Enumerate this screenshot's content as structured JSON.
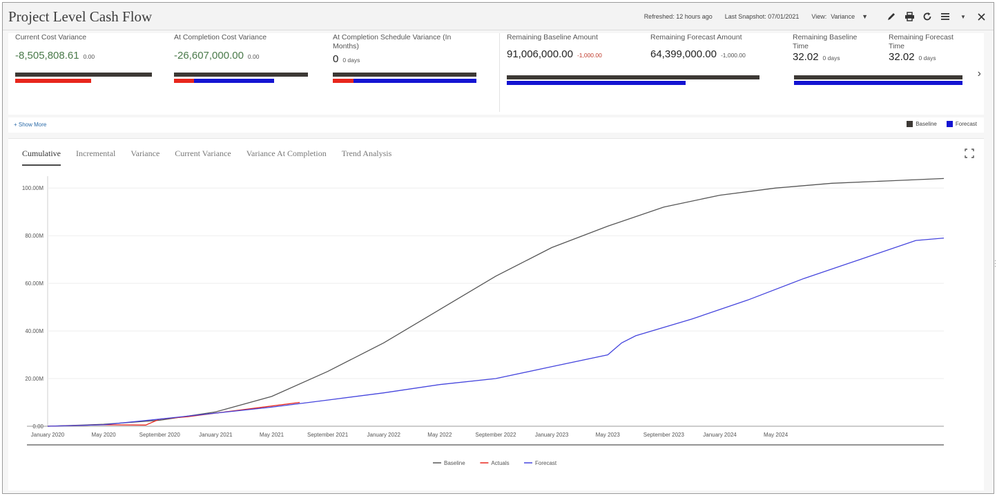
{
  "header": {
    "title": "Project Level Cash Flow",
    "refreshed": "Refreshed: 12 hours ago",
    "snapshot": "Last Snapshot: 07/01/2021",
    "view_label": "View:",
    "view_value": "Variance",
    "icons": [
      "pencil-icon",
      "print-icon",
      "refresh-icon",
      "menu-icon",
      "chevron-down-icon",
      "close-icon"
    ]
  },
  "metrics": [
    {
      "label": "Current Cost Variance",
      "value": "-8,505,808.61",
      "sub": "0.00",
      "baseline_fraction": 1.0,
      "red_fraction": 0.55,
      "blue_fraction": 0.0
    },
    {
      "label": "At Completion Cost Variance",
      "value": "-26,607,000.00",
      "sub": "0.00",
      "baseline_fraction": 1.0,
      "red_fraction": 0.15,
      "blue_fraction": 0.6
    },
    {
      "label": "At Completion Schedule Variance (In Months)",
      "value": "0",
      "sub": "0 days",
      "baseline_fraction": 1.0,
      "red_fraction": 0.15,
      "blue_fraction": 0.85
    },
    {
      "label": "Remaining Baseline Amount",
      "value": "91,006,000.00",
      "sub": "-1,000.00"
    },
    {
      "label": "Remaining Forecast Amount",
      "value": "64,399,000.00",
      "sub": "-1,000.00"
    },
    {
      "label": "Remaining Baseline Time",
      "value": "32.02",
      "sub": "0 days"
    },
    {
      "label": "Remaining Forecast Time",
      "value": "32.02",
      "sub": "0 days"
    }
  ],
  "show_more": "+ Show More",
  "legend_top": {
    "baseline": "Baseline",
    "forecast": "Forecast"
  },
  "colors": {
    "baseline": "#3d3935",
    "actuals": "#e8261c",
    "forecast": "#1414d2",
    "baseline_line": "#555555",
    "forecast_line": "#4444dd"
  },
  "tabs": [
    "Cumulative",
    "Incremental",
    "Variance",
    "Current Variance",
    "Variance At Completion",
    "Trend Analysis"
  ],
  "active_tab": "Cumulative",
  "chart_data": {
    "type": "line",
    "title": "",
    "xlabel": "",
    "ylabel": "",
    "x_ticks": [
      "January 2020",
      "May 2020",
      "September 2020",
      "January 2021",
      "May 2021",
      "September 2021",
      "January 2022",
      "May 2022",
      "September 2022",
      "January 2023",
      "May 2023",
      "September 2023",
      "January 2024",
      "May 2024"
    ],
    "y_ticks": [
      "0.00",
      "20.00M",
      "40.00M",
      "60.00M",
      "80.00M",
      "100.00M"
    ],
    "ylim": [
      0,
      100
    ],
    "x_unit": "month index from January 2020",
    "grid": true,
    "legend": "bottom",
    "series": [
      {
        "name": "Baseline",
        "points": [
          [
            0,
            0
          ],
          [
            4,
            0.8
          ],
          [
            8,
            2.5
          ],
          [
            12,
            6
          ],
          [
            16,
            12.5
          ],
          [
            20,
            23
          ],
          [
            24,
            35
          ],
          [
            28,
            49
          ],
          [
            32,
            63
          ],
          [
            36,
            75
          ],
          [
            40,
            84
          ],
          [
            44,
            92
          ],
          [
            48,
            97
          ],
          [
            52,
            100
          ],
          [
            56,
            102
          ],
          [
            60,
            103
          ],
          [
            64,
            104
          ]
        ]
      },
      {
        "name": "Actuals",
        "points": [
          [
            0,
            0
          ],
          [
            4,
            0.6
          ],
          [
            7,
            0.5
          ],
          [
            8,
            3
          ],
          [
            10,
            4
          ],
          [
            14,
            7
          ],
          [
            18,
            10
          ]
        ]
      },
      {
        "name": "Forecast",
        "points": [
          [
            0,
            0
          ],
          [
            4,
            0.6
          ],
          [
            8,
            3
          ],
          [
            12,
            5.5
          ],
          [
            16,
            8
          ],
          [
            20,
            11
          ],
          [
            24,
            14
          ],
          [
            28,
            17.5
          ],
          [
            32,
            20
          ],
          [
            36,
            25
          ],
          [
            40,
            30
          ],
          [
            41,
            35
          ],
          [
            42,
            38
          ],
          [
            46,
            45
          ],
          [
            50,
            53
          ],
          [
            54,
            62
          ],
          [
            58,
            70
          ],
          [
            62,
            78
          ],
          [
            64,
            79
          ]
        ]
      }
    ]
  }
}
